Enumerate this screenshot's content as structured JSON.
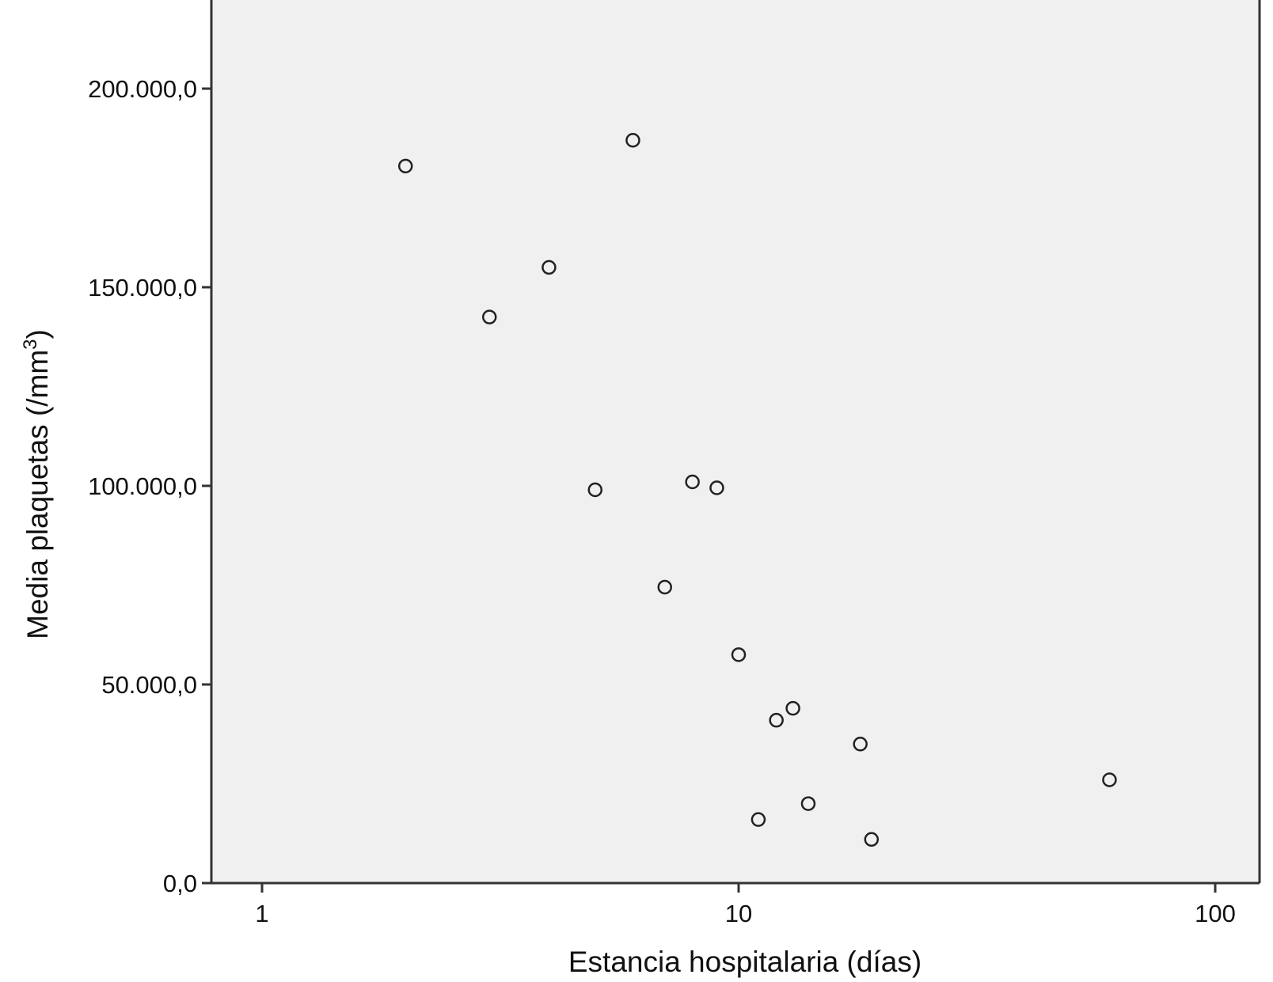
{
  "chart_data": {
    "type": "scatter",
    "title": "",
    "xlabel": "Estancia hospitalaria (días)",
    "ylabel_main": "Media plaquetas (/mm",
    "ylabel_sup": "3",
    "ylabel_close": ")",
    "x_scale": "log",
    "xlim": [
      0.8,
      125
    ],
    "ylim": [
      0,
      220000
    ],
    "xticks": [
      {
        "value": 1,
        "label": "1"
      },
      {
        "value": 10,
        "label": "10"
      },
      {
        "value": 100,
        "label": "100"
      }
    ],
    "yticks": [
      {
        "value": 0,
        "label": "0,0"
      },
      {
        "value": 50000,
        "label": "50.000,0"
      },
      {
        "value": 100000,
        "label": "100.000,0"
      },
      {
        "value": 150000,
        "label": "150.000,0"
      },
      {
        "value": 200000,
        "label": "200.000,0"
      }
    ],
    "grid": false,
    "marker": "open-circle",
    "colors": {
      "plot_background": "#f0f0f0",
      "axis": "#333333",
      "marker_stroke": "#222222",
      "text": "#111111"
    },
    "points": [
      {
        "x": 2,
        "y": 180500
      },
      {
        "x": 3,
        "y": 142500
      },
      {
        "x": 4,
        "y": 155000
      },
      {
        "x": 5,
        "y": 99000
      },
      {
        "x": 6,
        "y": 187000
      },
      {
        "x": 7,
        "y": 74500
      },
      {
        "x": 8,
        "y": 101000
      },
      {
        "x": 9,
        "y": 99500
      },
      {
        "x": 10,
        "y": 57500
      },
      {
        "x": 11,
        "y": 16000
      },
      {
        "x": 12,
        "y": 41000
      },
      {
        "x": 13,
        "y": 44000
      },
      {
        "x": 14,
        "y": 20000
      },
      {
        "x": 18,
        "y": 35000
      },
      {
        "x": 19,
        "y": 11000
      },
      {
        "x": 60,
        "y": 26000
      }
    ]
  }
}
